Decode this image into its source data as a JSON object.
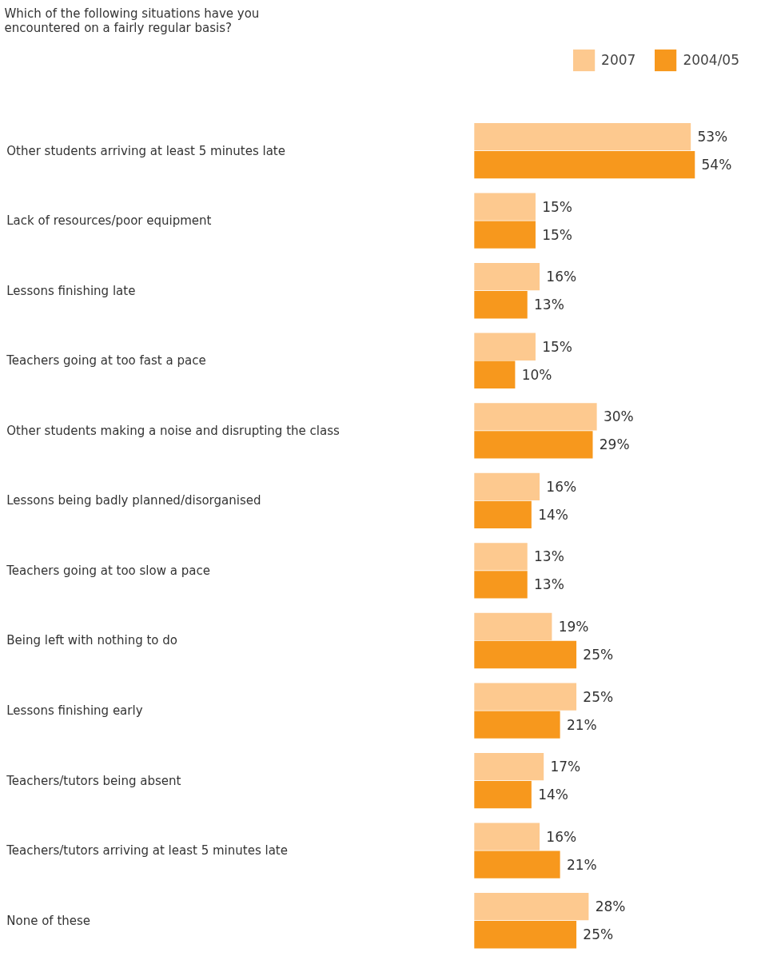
{
  "chart_data": {
    "type": "bar",
    "orientation": "horizontal",
    "title": "Which of the following situations have you encountered on a fairly regular basis?",
    "categories": [
      "Other students arriving at least 5 minutes late",
      "Lack of resources/poor equipment",
      "Lessons finishing late",
      "Teachers going at too fast a pace",
      "Other students making a noise and disrupting the class",
      "Lessons being badly planned/disorganised",
      "Teachers going at too slow a pace",
      "Being left with nothing to do",
      "Lessons finishing early",
      "Teachers/tutors being absent",
      "Teachers/tutors arriving at least 5 minutes late",
      "None of these"
    ],
    "series": [
      {
        "name": "2007",
        "color": "#fdc98f",
        "values": [
          53,
          15,
          16,
          15,
          30,
          16,
          13,
          19,
          25,
          17,
          16,
          28
        ],
        "value_labels": [
          "53%",
          "15%",
          "16%",
          "15%",
          "30%",
          "16%",
          "13%",
          "19%",
          "25%",
          "17%",
          "16%",
          "28%"
        ]
      },
      {
        "name": "2004/05",
        "color": "#f7981d",
        "values": [
          54,
          15,
          13,
          10,
          29,
          14,
          13,
          25,
          21,
          14,
          21,
          25
        ],
        "value_labels": [
          "54%",
          "15%",
          "13%",
          "10%",
          "29%",
          "14%",
          "13%",
          "25%",
          "21%",
          "14%",
          "21%",
          "25%"
        ]
      }
    ],
    "legend": "top right",
    "grid": false
  }
}
